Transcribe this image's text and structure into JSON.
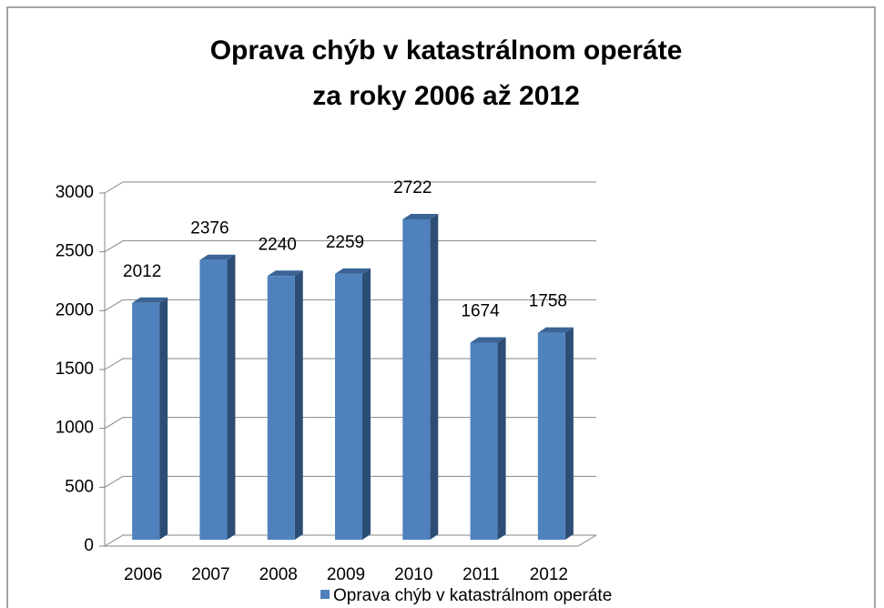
{
  "chart_data": {
    "type": "bar3d",
    "title": [
      "Oprava chýb v katastrálnom operáte",
      "za roky 2006 až 2012"
    ],
    "categories": [
      "2006",
      "2007",
      "2008",
      "2009",
      "2010",
      "2011",
      "2012"
    ],
    "series": [
      {
        "name": "Oprava chýb v katastrálnom operáte",
        "color": "#4f81bd",
        "values": [
          2012,
          2376,
          2240,
          2259,
          2722,
          1674,
          1758
        ]
      }
    ],
    "ylim": [
      0,
      3000
    ],
    "yticks": [
      0,
      500,
      1000,
      1500,
      2000,
      2500,
      3000
    ],
    "grid": true,
    "legend": "bottom",
    "data_labels": true
  }
}
